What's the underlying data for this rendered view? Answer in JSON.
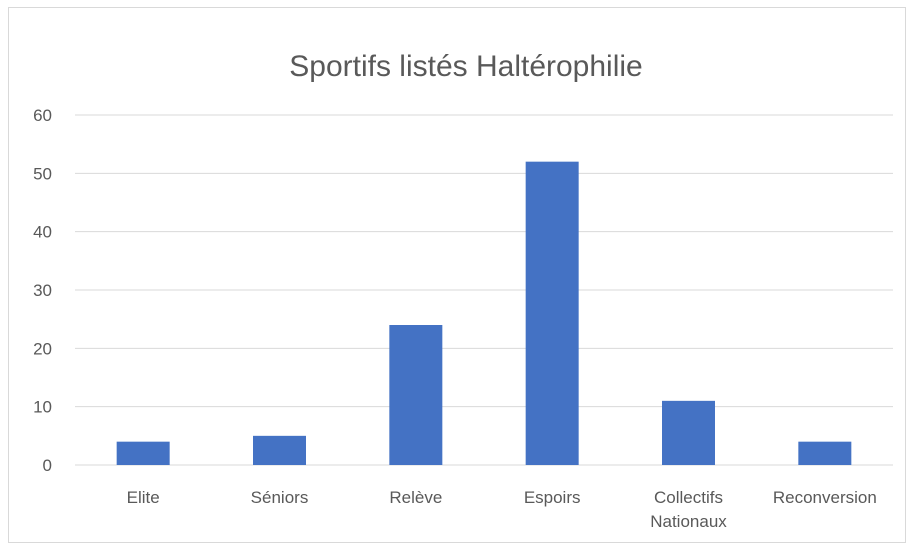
{
  "chart_data": {
    "type": "bar",
    "title": "Sportifs listés Haltérophilie",
    "xlabel": "",
    "ylabel": "",
    "categories": [
      [
        "Elite"
      ],
      [
        "Séniors"
      ],
      [
        "Relève"
      ],
      [
        "Espoirs"
      ],
      [
        "Collectifs",
        "Nationaux"
      ],
      [
        "Reconversion"
      ]
    ],
    "values": [
      4,
      5,
      24,
      52,
      11,
      4
    ],
    "ylim": [
      0,
      60
    ],
    "yticks": [
      0,
      10,
      20,
      30,
      40,
      50,
      60
    ],
    "grid": true,
    "legend": "none",
    "colors": {
      "bar": "#4472c4",
      "grid": "#d9d9d9",
      "text": "#595959"
    }
  }
}
